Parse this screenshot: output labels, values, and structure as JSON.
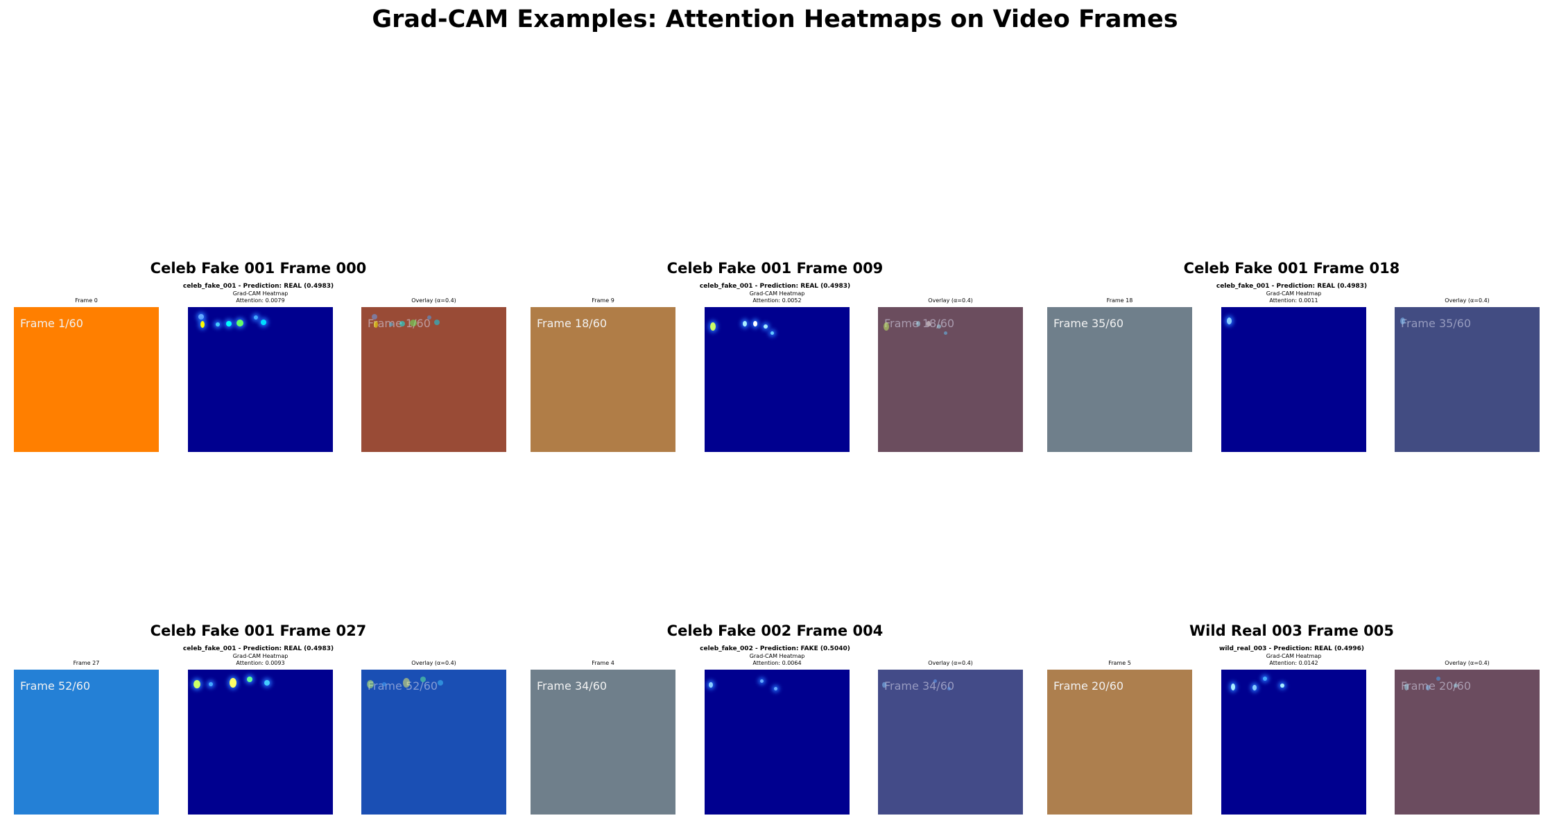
{
  "figure_title": "Grad-CAM Examples: Attention Heatmaps on Video Frames",
  "panels": [
    {
      "title": "Celeb Fake 001 Frame 000",
      "prediction": "celeb_fake_001 - Prediction: REAL (0.4983)",
      "frame_label": "Frame 0",
      "heatmap_label": "Grad-CAM Heatmap",
      "attention": "Attention: 0.0079",
      "overlay_label": "Overlay (α=0.4)",
      "frame_text": "Frame 1/60",
      "frame_color": "#ff7f00",
      "overlay_color": "#994b36"
    },
    {
      "title": "Celeb Fake 001 Frame 009",
      "prediction": "celeb_fake_001 - Prediction: REAL (0.4983)",
      "frame_label": "Frame 9",
      "heatmap_label": "Grad-CAM Heatmap",
      "attention": "Attention: 0.0052",
      "overlay_label": "Overlay (α=0.4)",
      "frame_text": "Frame 18/60",
      "frame_color": "#b07d47",
      "overlay_color": "#6b4d5e"
    },
    {
      "title": "Celeb Fake 001 Frame 018",
      "prediction": "celeb_fake_001 - Prediction: REAL (0.4983)",
      "frame_label": "Frame 18",
      "heatmap_label": "Grad-CAM Heatmap",
      "attention": "Attention: 0.0011",
      "overlay_label": "Overlay (α=0.4)",
      "frame_text": "Frame 35/60",
      "frame_color": "#6f7f8b",
      "overlay_color": "#424c82"
    },
    {
      "title": "Celeb Fake 001 Frame 027",
      "prediction": "celeb_fake_001 - Prediction: REAL (0.4983)",
      "frame_label": "Frame 27",
      "heatmap_label": "Grad-CAM Heatmap",
      "attention": "Attention: 0.0093",
      "overlay_label": "Overlay (α=0.4)",
      "frame_text": "Frame 52/60",
      "frame_color": "#2480d6",
      "overlay_color": "#1a4fb4"
    },
    {
      "title": "Celeb Fake 002 Frame 004",
      "prediction": "celeb_fake_002 - Prediction: FAKE (0.5040)",
      "frame_label": "Frame 4",
      "heatmap_label": "Grad-CAM Heatmap",
      "attention": "Attention: 0.0064",
      "overlay_label": "Overlay (α=0.4)",
      "frame_text": "Frame 34/60",
      "frame_color": "#6f7f8b",
      "overlay_color": "#434b88"
    },
    {
      "title": "Wild Real 003 Frame 005",
      "prediction": "wild_real_003 - Prediction: REAL (0.4996)",
      "frame_label": "Frame 5",
      "heatmap_label": "Grad-CAM Heatmap",
      "attention": "Attention: 0.0142",
      "overlay_label": "Overlay (α=0.4)",
      "frame_text": "Frame 20/60",
      "frame_color": "#ad7f4e",
      "overlay_color": "#6b4c5f"
    }
  ]
}
